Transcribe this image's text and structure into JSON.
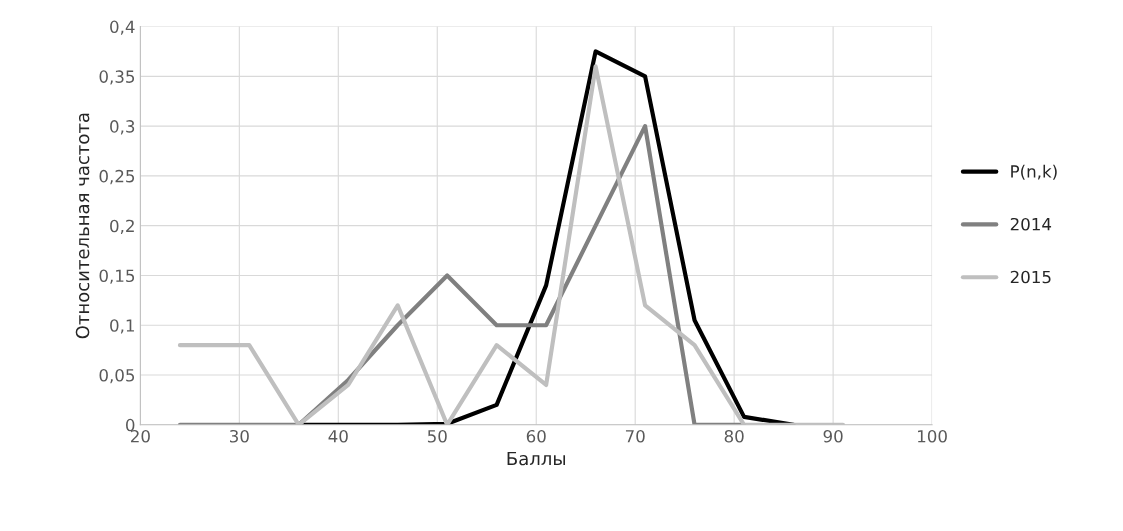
{
  "chart_data": {
    "type": "line",
    "xlabel": "Баллы",
    "ylabel": "Относительная частота",
    "xlim": [
      20,
      100
    ],
    "xticks": [
      20,
      30,
      40,
      50,
      60,
      70,
      80,
      90,
      100
    ],
    "ylim": [
      0,
      0.4
    ],
    "yticks": [
      {
        "value": 0,
        "label": "0"
      },
      {
        "value": 0.05,
        "label": "0,05"
      },
      {
        "value": 0.1,
        "label": "0,1"
      },
      {
        "value": 0.15,
        "label": "0,15"
      },
      {
        "value": 0.2,
        "label": "0,2"
      },
      {
        "value": 0.25,
        "label": "0,25"
      },
      {
        "value": 0.3,
        "label": "0,3"
      },
      {
        "value": 0.35,
        "label": "0,35"
      },
      {
        "value": 0.4,
        "label": "0,4"
      }
    ],
    "grid": true,
    "legend": "right",
    "marker": "none",
    "line_style": "solid",
    "series": [
      {
        "name": "P(n,k)",
        "color": "#000000",
        "x": [
          36,
          41,
          46,
          51,
          56,
          61,
          66,
          71,
          76,
          81,
          86
        ],
        "values": [
          0,
          0,
          0,
          0.001,
          0.02,
          0.14,
          0.375,
          0.35,
          0.105,
          0.008,
          0
        ]
      },
      {
        "name": "2014",
        "color": "#808080",
        "x": [
          24,
          31,
          36,
          41,
          46,
          51,
          56,
          61,
          66,
          71,
          76,
          81
        ],
        "values": [
          0,
          0,
          0,
          0.045,
          0.1,
          0.15,
          0.1,
          0.1,
          0.2,
          0.3,
          0,
          0
        ]
      },
      {
        "name": "2015",
        "color": "#bfbfbf",
        "x": [
          24,
          31,
          36,
          41,
          46,
          51,
          56,
          61,
          66,
          71,
          76,
          81,
          86,
          91
        ],
        "values": [
          0.08,
          0.08,
          0,
          0.04,
          0.12,
          0,
          0.08,
          0.04,
          0.36,
          0.12,
          0.08,
          0,
          0,
          0
        ]
      }
    ]
  }
}
